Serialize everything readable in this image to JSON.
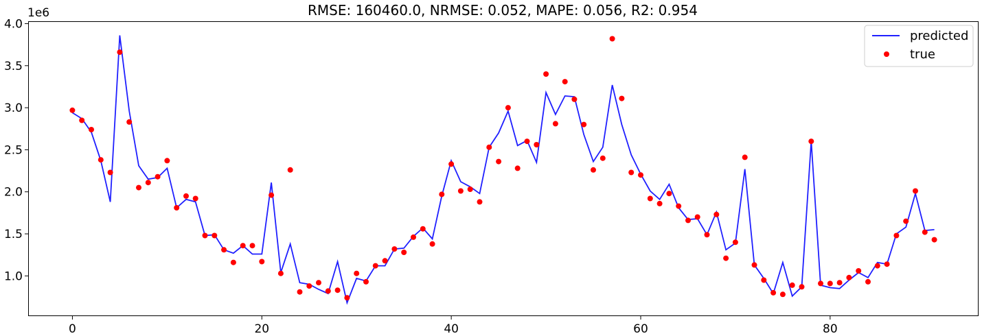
{
  "chart_data": {
    "type": "line",
    "title": "RMSE: 160460.0, NRMSE: 0.052, MAPE: 0.056, R2: 0.954",
    "xlabel": "",
    "ylabel": "",
    "y_offset_label": "1e6",
    "xlim": [
      -4.6,
      95.6
    ],
    "ylim": [
      0.53,
      4.02
    ],
    "xticks": [
      0,
      20,
      40,
      60,
      80
    ],
    "xtick_labels": [
      "0",
      "20",
      "40",
      "60",
      "80"
    ],
    "yticks": [
      1.0,
      1.5,
      2.0,
      2.5,
      3.0,
      3.5,
      4.0
    ],
    "ytick_labels": [
      "1.0",
      "1.5",
      "2.0",
      "2.5",
      "3.0",
      "3.5",
      "4.0"
    ],
    "grid": false,
    "legend_position": "top-right",
    "series": [
      {
        "name": "predicted",
        "kind": "line",
        "color": "#1f1fff",
        "x": [
          0,
          1,
          2,
          3,
          4,
          5,
          6,
          7,
          8,
          9,
          10,
          11,
          12,
          13,
          14,
          15,
          16,
          17,
          18,
          19,
          20,
          21,
          22,
          23,
          24,
          25,
          26,
          27,
          28,
          29,
          30,
          31,
          32,
          33,
          34,
          35,
          36,
          37,
          38,
          39,
          40,
          41,
          42,
          43,
          44,
          45,
          46,
          47,
          48,
          49,
          50,
          51,
          52,
          53,
          54,
          55,
          56,
          57,
          58,
          59,
          60,
          61,
          62,
          63,
          64,
          65,
          66,
          67,
          68,
          69,
          70,
          71,
          72,
          73,
          74,
          75,
          76,
          77,
          78,
          79,
          80,
          81,
          82,
          83,
          84,
          85,
          86,
          87,
          88,
          89,
          90,
          91
        ],
        "y": [
          2.94,
          2.87,
          2.71,
          2.37,
          1.88,
          3.86,
          2.96,
          2.31,
          2.15,
          2.17,
          2.28,
          1.81,
          1.91,
          1.88,
          1.48,
          1.49,
          1.31,
          1.27,
          1.36,
          1.26,
          1.26,
          2.11,
          1.04,
          1.38,
          0.92,
          0.9,
          0.84,
          0.79,
          1.17,
          0.68,
          0.97,
          0.94,
          1.12,
          1.12,
          1.32,
          1.33,
          1.47,
          1.57,
          1.44,
          1.95,
          2.37,
          2.12,
          2.06,
          1.98,
          2.53,
          2.7,
          2.96,
          2.55,
          2.61,
          2.35,
          3.18,
          2.92,
          3.14,
          3.13,
          2.68,
          2.36,
          2.53,
          3.27,
          2.8,
          2.44,
          2.21,
          2.01,
          1.91,
          2.09,
          1.81,
          1.67,
          1.68,
          1.49,
          1.76,
          1.31,
          1.39,
          2.27,
          1.13,
          0.97,
          0.79,
          1.16,
          0.76,
          0.87,
          2.6,
          0.89,
          0.86,
          0.85,
          0.95,
          1.04,
          0.98,
          1.16,
          1.14,
          1.5,
          1.58,
          1.98,
          1.54,
          1.55
        ]
      },
      {
        "name": "true",
        "kind": "scatter",
        "color": "#ff0000",
        "x": [
          0,
          1,
          2,
          3,
          4,
          5,
          6,
          7,
          8,
          9,
          10,
          11,
          12,
          13,
          14,
          15,
          16,
          17,
          18,
          19,
          20,
          21,
          22,
          23,
          24,
          25,
          26,
          27,
          28,
          29,
          30,
          31,
          32,
          33,
          34,
          35,
          36,
          37,
          38,
          39,
          40,
          41,
          42,
          43,
          44,
          45,
          46,
          47,
          48,
          49,
          50,
          51,
          52,
          53,
          54,
          55,
          56,
          57,
          58,
          59,
          60,
          61,
          62,
          63,
          64,
          65,
          66,
          67,
          68,
          69,
          70,
          71,
          72,
          73,
          74,
          75,
          76,
          77,
          78,
          79,
          80,
          81,
          82,
          83,
          84,
          85,
          86,
          87,
          88,
          89,
          90,
          91
        ],
        "y": [
          2.97,
          2.85,
          2.74,
          2.38,
          2.23,
          3.66,
          2.83,
          2.05,
          2.11,
          2.18,
          2.37,
          1.81,
          1.95,
          1.92,
          1.48,
          1.48,
          1.31,
          1.16,
          1.36,
          1.36,
          1.17,
          1.96,
          1.03,
          2.26,
          0.81,
          0.88,
          0.92,
          0.82,
          0.83,
          0.74,
          1.03,
          0.93,
          1.12,
          1.18,
          1.32,
          1.28,
          1.46,
          1.56,
          1.38,
          1.97,
          2.33,
          2.01,
          2.03,
          1.88,
          2.53,
          2.36,
          3.0,
          2.28,
          2.6,
          2.56,
          3.4,
          2.81,
          3.31,
          3.1,
          2.8,
          2.26,
          2.4,
          3.82,
          3.11,
          2.23,
          2.2,
          1.92,
          1.86,
          1.98,
          1.83,
          1.66,
          1.7,
          1.49,
          1.73,
          1.21,
          1.4,
          2.41,
          1.13,
          0.95,
          0.8,
          0.78,
          0.89,
          0.87,
          2.6,
          0.91,
          0.91,
          0.92,
          0.98,
          1.06,
          0.93,
          1.12,
          1.14,
          1.48,
          1.65,
          2.01,
          1.52,
          1.43
        ]
      }
    ]
  }
}
